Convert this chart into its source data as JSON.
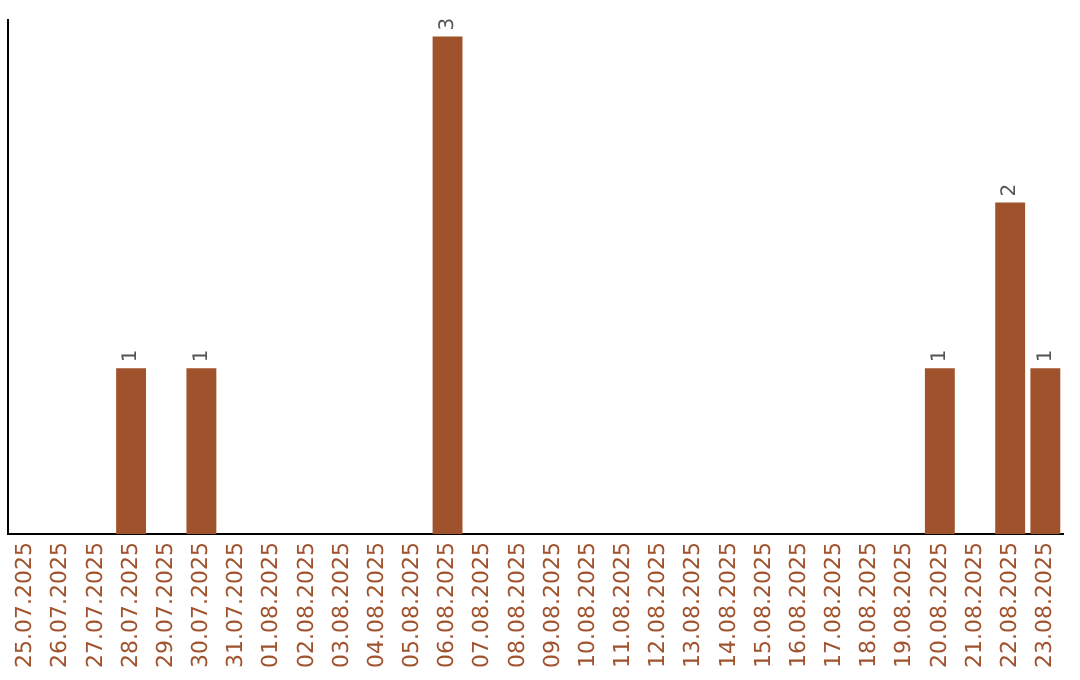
{
  "chart_data": {
    "type": "bar",
    "categories": [
      "25.07.2025",
      "26.07.2025",
      "27.07.2025",
      "28.07.2025",
      "29.07.2025",
      "30.07.2025",
      "31.07.2025",
      "01.08.2025",
      "02.08.2025",
      "03.08.2025",
      "04.08.2025",
      "05.08.2025",
      "06.08.2025",
      "07.08.2025",
      "08.08.2025",
      "09.08.2025",
      "10.08.2025",
      "11.08.2025",
      "12.08.2025",
      "13.08.2025",
      "14.08.2025",
      "15.08.2025",
      "16.08.2025",
      "17.08.2025",
      "18.08.2025",
      "19.08.2025",
      "20.08.2025",
      "21.08.2025",
      "22.08.2025",
      "23.08.2025"
    ],
    "values": [
      0,
      0,
      0,
      1,
      0,
      1,
      0,
      0,
      0,
      0,
      0,
      0,
      3,
      0,
      0,
      0,
      0,
      0,
      0,
      0,
      0,
      0,
      0,
      0,
      0,
      0,
      1,
      0,
      2,
      1
    ],
    "value_labels": [
      null,
      null,
      null,
      "1",
      null,
      "1",
      null,
      null,
      null,
      null,
      null,
      null,
      "3",
      null,
      null,
      null,
      null,
      null,
      null,
      null,
      null,
      null,
      null,
      null,
      null,
      null,
      "1",
      null,
      "2",
      "1"
    ],
    "color": "#a0522d",
    "ylim": [
      0,
      3.1
    ],
    "tick_labels": "x",
    "grid": false,
    "legend": false
  }
}
